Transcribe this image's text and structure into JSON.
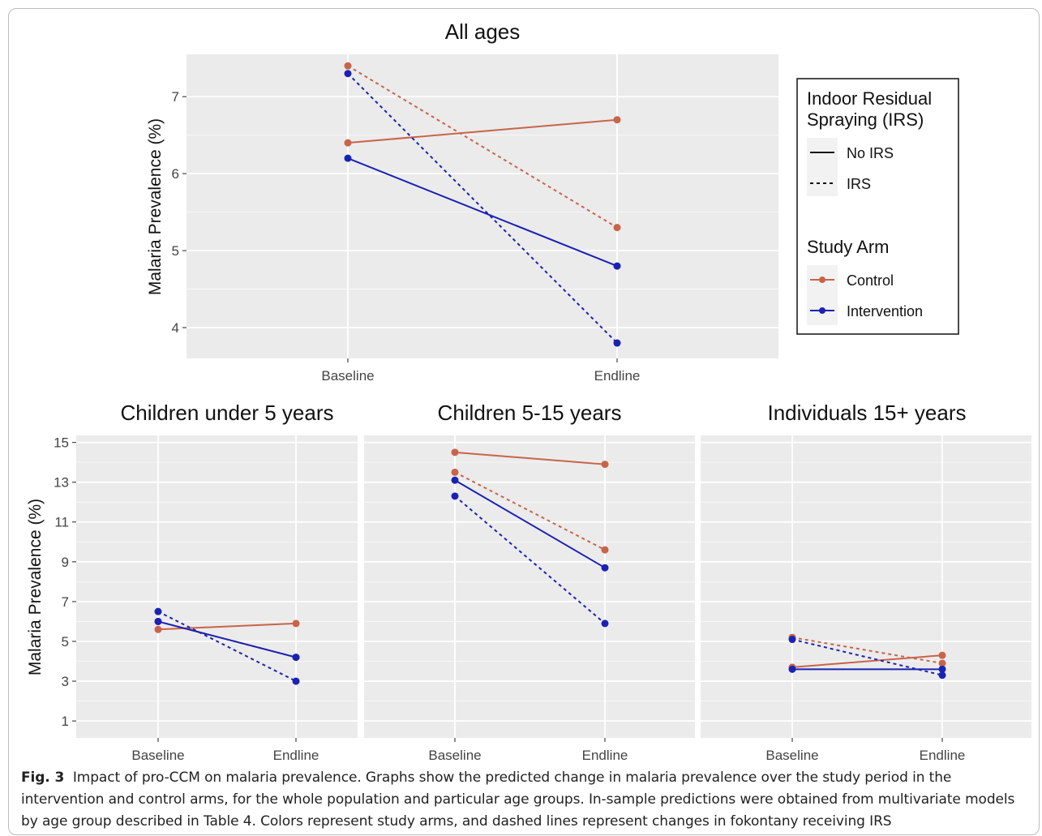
{
  "caption": {
    "label": "Fig. 3",
    "text": "Impact of pro-CCM on malaria prevalence. Graphs show the predicted change in malaria prevalence over the study period in the intervention and control arms, for the whole population and particular age groups. In-sample predictions were obtained from multivariate models by age group described in Table 4. Colors represent study arms, and dashed lines represent changes in fokontany receiving IRS"
  },
  "legend": {
    "irs_title_line1": "Indoor Residual",
    "irs_title_line2": "Spraying (IRS)",
    "no_irs": "No IRS",
    "irs": "IRS",
    "arm_title": "Study Arm",
    "control": "Control",
    "intervention": "Intervention"
  },
  "colors": {
    "control": "#c8644a",
    "intervention": "#1a22b4",
    "panel_bg": "#ebebeb",
    "grid": "#ffffff"
  },
  "chart_data": [
    {
      "type": "line",
      "title": "All ages",
      "ylabel": "Malaria Prevalence (%)",
      "categories": [
        "Baseline",
        "Endline"
      ],
      "ylim": [
        3.6,
        7.55
      ],
      "yticks": [
        4,
        5,
        6,
        7
      ],
      "series": [
        {
          "name": "Control - No IRS",
          "arm": "control",
          "irs": false,
          "values": [
            6.4,
            6.7
          ]
        },
        {
          "name": "Control - IRS",
          "arm": "control",
          "irs": true,
          "values": [
            7.4,
            5.3
          ]
        },
        {
          "name": "Intervention - No IRS",
          "arm": "intervention",
          "irs": false,
          "values": [
            6.2,
            4.8
          ]
        },
        {
          "name": "Intervention - IRS",
          "arm": "intervention",
          "irs": true,
          "values": [
            7.3,
            3.8
          ]
        }
      ]
    },
    {
      "type": "line",
      "title": "Children under 5 years",
      "ylabel": "Malaria Prevalence (%)",
      "categories": [
        "Baseline",
        "Endline"
      ],
      "ylim": [
        0.15,
        15.35
      ],
      "yticks": [
        1,
        3,
        5,
        7,
        9,
        11,
        13,
        15
      ],
      "series": [
        {
          "name": "Control - No IRS",
          "arm": "control",
          "irs": false,
          "values": [
            5.6,
            5.9
          ]
        },
        {
          "name": "Control - IRS",
          "arm": "control",
          "irs": true,
          "values": [
            6.0,
            4.2
          ]
        },
        {
          "name": "Intervention - No IRS",
          "arm": "intervention",
          "irs": false,
          "values": [
            6.0,
            4.2
          ]
        },
        {
          "name": "Intervention - IRS",
          "arm": "intervention",
          "irs": true,
          "values": [
            6.5,
            3.0
          ]
        }
      ]
    },
    {
      "type": "line",
      "title": "Children 5-15 years",
      "categories": [
        "Baseline",
        "Endline"
      ],
      "ylim": [
        0.15,
        15.35
      ],
      "series": [
        {
          "name": "Control - No IRS",
          "arm": "control",
          "irs": false,
          "values": [
            14.5,
            13.9
          ]
        },
        {
          "name": "Control - IRS",
          "arm": "control",
          "irs": true,
          "values": [
            13.5,
            9.6
          ]
        },
        {
          "name": "Intervention - No IRS",
          "arm": "intervention",
          "irs": false,
          "values": [
            13.1,
            8.7
          ]
        },
        {
          "name": "Intervention - IRS",
          "arm": "intervention",
          "irs": true,
          "values": [
            12.3,
            5.9
          ]
        }
      ]
    },
    {
      "type": "line",
      "title": "Individuals 15+ years",
      "categories": [
        "Baseline",
        "Endline"
      ],
      "ylim": [
        0.15,
        15.35
      ],
      "series": [
        {
          "name": "Control - No IRS",
          "arm": "control",
          "irs": false,
          "values": [
            3.7,
            4.3
          ]
        },
        {
          "name": "Control - IRS",
          "arm": "control",
          "irs": true,
          "values": [
            5.2,
            3.9
          ]
        },
        {
          "name": "Intervention - No IRS",
          "arm": "intervention",
          "irs": false,
          "values": [
            3.6,
            3.6
          ]
        },
        {
          "name": "Intervention - IRS",
          "arm": "intervention",
          "irs": true,
          "values": [
            5.1,
            3.3
          ]
        }
      ]
    }
  ]
}
